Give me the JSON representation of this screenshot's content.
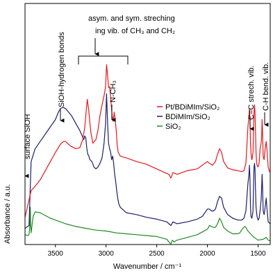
{
  "chart_data": {
    "type": "line",
    "xlabel": "Wavenumber / cm⁻¹",
    "ylabel": "Absorbance / a.u.",
    "xlim": [
      3800,
      1380
    ],
    "x_ticks": [
      "3500",
      "3000",
      "2500",
      "2000",
      "1500"
    ],
    "x_tick_values": [
      3500,
      3000,
      2500,
      2000,
      1500
    ],
    "ylim": [
      0,
      1
    ],
    "y_ticks_shown": false,
    "legend": {
      "placement": "middle-right"
    },
    "series": [
      {
        "name": "Pt/BDiMIm/SiO₂",
        "color": "#e8161b",
        "x": [
          3800,
          3740,
          3700,
          3650,
          3600,
          3550,
          3500,
          3450,
          3420,
          3400,
          3350,
          3300,
          3260,
          3230,
          3210,
          3195,
          3185,
          3170,
          3160,
          3150,
          3130,
          3100,
          3080,
          3060,
          3040,
          3020,
          3005,
          2995,
          2985,
          2975,
          2965,
          2955,
          2940,
          2930,
          2920,
          2910,
          2900,
          2890,
          2880,
          2860,
          2800,
          2700,
          2600,
          2500,
          2400,
          2380,
          2360,
          2340,
          2300,
          2200,
          2100,
          2050,
          2000,
          1980,
          1950,
          1920,
          1900,
          1880,
          1860,
          1840,
          1800,
          1750,
          1700,
          1660,
          1640,
          1620,
          1600,
          1590,
          1585,
          1580,
          1575,
          1570,
          1565,
          1560,
          1550,
          1545,
          1540,
          1535,
          1530,
          1525,
          1520,
          1515,
          1510,
          1500,
          1490,
          1480,
          1470,
          1465,
          1460,
          1455,
          1450,
          1440,
          1430,
          1420,
          1410,
          1400,
          1390,
          1380
        ],
        "values": [
          0.145,
          0.29,
          0.315,
          0.35,
          0.4,
          0.45,
          0.5,
          0.545,
          0.56,
          0.56,
          0.535,
          0.52,
          0.525,
          0.57,
          0.64,
          0.735,
          0.79,
          0.725,
          0.66,
          0.61,
          0.55,
          0.57,
          0.62,
          0.7,
          0.76,
          0.81,
          0.86,
          0.98,
          0.92,
          0.855,
          0.86,
          0.8,
          0.7,
          0.67,
          0.72,
          0.68,
          0.62,
          0.54,
          0.5,
          0.48,
          0.47,
          0.45,
          0.435,
          0.41,
          0.385,
          0.38,
          0.36,
          0.39,
          0.38,
          0.4,
          0.41,
          0.43,
          0.45,
          0.44,
          0.43,
          0.45,
          0.49,
          0.52,
          0.5,
          0.45,
          0.415,
          0.405,
          0.4,
          0.395,
          0.4,
          0.44,
          0.64,
          0.7,
          0.74,
          0.68,
          0.55,
          0.5,
          0.47,
          0.46,
          0.5,
          0.6,
          0.72,
          0.76,
          0.72,
          0.62,
          0.5,
          0.45,
          0.43,
          0.42,
          0.44,
          0.52,
          0.55,
          0.58,
          0.68,
          0.6,
          0.48,
          0.46,
          0.52,
          0.56,
          0.5,
          0.42,
          0.4,
          0.39
        ]
      },
      {
        "name": "BDiMIm/SiO₂",
        "color": "#1c1c6e",
        "x": [
          3800,
          3760,
          3740,
          3700,
          3650,
          3600,
          3550,
          3500,
          3470,
          3450,
          3430,
          3420,
          3400,
          3370,
          3340,
          3300,
          3260,
          3220,
          3210,
          3200,
          3190,
          3180,
          3170,
          3160,
          3140,
          3120,
          3100,
          3080,
          3060,
          3040,
          3020,
          3005,
          2995,
          2985,
          2975,
          2965,
          2955,
          2945,
          2935,
          2925,
          2915,
          2905,
          2895,
          2885,
          2875,
          2860,
          2800,
          2700,
          2600,
          2500,
          2400,
          2380,
          2360,
          2340,
          2300,
          2200,
          2100,
          2050,
          2000,
          1980,
          1960,
          1940,
          1920,
          1900,
          1880,
          1860,
          1840,
          1800,
          1750,
          1700,
          1660,
          1640,
          1620,
          1600,
          1590,
          1585,
          1580,
          1575,
          1570,
          1560,
          1550,
          1545,
          1540,
          1535,
          1530,
          1525,
          1520,
          1510,
          1500,
          1490,
          1480,
          1470,
          1465,
          1460,
          1455,
          1450,
          1440,
          1430,
          1420,
          1410,
          1400,
          1380
        ],
        "values": [
          0.085,
          0.1,
          0.45,
          0.52,
          0.56,
          0.6,
          0.64,
          0.68,
          0.72,
          0.74,
          0.745,
          0.745,
          0.74,
          0.72,
          0.7,
          0.66,
          0.62,
          0.57,
          0.59,
          0.58,
          0.52,
          0.49,
          0.48,
          0.46,
          0.45,
          0.42,
          0.41,
          0.42,
          0.44,
          0.47,
          0.55,
          0.66,
          0.82,
          0.66,
          0.55,
          0.52,
          0.5,
          0.46,
          0.48,
          0.44,
          0.38,
          0.34,
          0.29,
          0.25,
          0.22,
          0.2,
          0.17,
          0.16,
          0.145,
          0.135,
          0.12,
          0.11,
          0.1,
          0.12,
          0.11,
          0.12,
          0.135,
          0.15,
          0.19,
          0.19,
          0.18,
          0.18,
          0.19,
          0.23,
          0.26,
          0.25,
          0.2,
          0.16,
          0.14,
          0.13,
          0.13,
          0.14,
          0.18,
          0.33,
          0.38,
          0.43,
          0.36,
          0.2,
          0.15,
          0.14,
          0.18,
          0.3,
          0.42,
          0.44,
          0.41,
          0.3,
          0.2,
          0.15,
          0.13,
          0.14,
          0.18,
          0.24,
          0.3,
          0.38,
          0.3,
          0.18,
          0.16,
          0.2,
          0.25,
          0.18,
          0.12,
          0.11
        ]
      },
      {
        "name": "SiO₂",
        "color": "#1d8a1d",
        "x": [
          3800,
          3770,
          3760,
          3752,
          3748,
          3744,
          3740,
          3720,
          3700,
          3650,
          3600,
          3550,
          3500,
          3450,
          3400,
          3300,
          3200,
          3100,
          3000,
          2900,
          2800,
          2700,
          2600,
          2500,
          2400,
          2380,
          2360,
          2345,
          2330,
          2300,
          2200,
          2100,
          2050,
          2000,
          1980,
          1960,
          1940,
          1920,
          1900,
          1880,
          1860,
          1840,
          1800,
          1750,
          1700,
          1680,
          1650,
          1630,
          1620,
          1600,
          1550,
          1500,
          1450,
          1420,
          1400,
          1380
        ],
        "values": [
          0.05,
          0.045,
          0.05,
          0.1,
          0.2,
          0.1,
          0.06,
          0.15,
          0.175,
          0.17,
          0.155,
          0.14,
          0.13,
          0.12,
          0.11,
          0.095,
          0.085,
          0.075,
          0.07,
          0.06,
          0.055,
          0.05,
          0.045,
          0.04,
          0.025,
          0.01,
          0.0,
          0.02,
          0.01,
          0.02,
          0.035,
          0.05,
          0.065,
          0.08,
          0.1,
          0.095,
          0.09,
          0.09,
          0.11,
          0.14,
          0.12,
          0.09,
          0.07,
          0.055,
          0.055,
          0.06,
          0.085,
          0.095,
          0.09,
          0.07,
          0.04,
          0.02,
          0.025,
          0.035,
          0.02,
          0.015
        ]
      }
    ],
    "annotations": [
      {
        "id": "surface-sioh",
        "text": "surface SiOH",
        "x": 3750,
        "value": 0.22
      },
      {
        "id": "sioh-hbonds",
        "text": "SiOH-hydrogen bonds",
        "x": 3450,
        "value": 0.77
      },
      {
        "id": "ch-stretch-line1",
        "text": "asym. and sym. streching"
      },
      {
        "id": "ch-stretch-line2",
        "text": "ing vib. of CH₃ and CH₂"
      },
      {
        "id": "n-ch3",
        "text": "N-CH₃",
        "x": 2925,
        "value": 0.72
      },
      {
        "id": "cc-stretch",
        "text": "C=C strech. vib.",
        "x": 1570,
        "value": 0.74
      },
      {
        "id": "ch-bend",
        "text": "C-H bend. vib.",
        "x": 1460,
        "value": 0.7
      }
    ]
  }
}
